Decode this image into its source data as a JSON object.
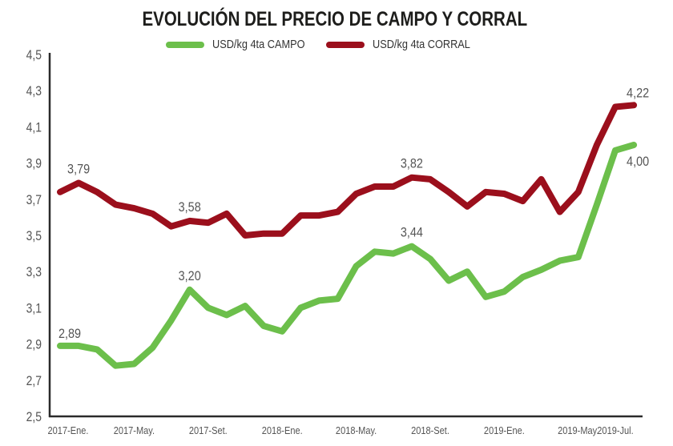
{
  "chart_data": {
    "type": "line",
    "title": "EVOLUCIÓN DEL PRECIO DE CAMPO Y CORRAL",
    "xlabel": "",
    "ylabel": "",
    "ylim": [
      2.5,
      4.5
    ],
    "y_ticks": [
      "4,5",
      "4,3",
      "4,1",
      "3,9",
      "3,7",
      "3,5",
      "3,3",
      "3,1",
      "2,9",
      "2,7",
      "2,5"
    ],
    "y_tick_values": [
      4.5,
      4.3,
      4.1,
      3.9,
      3.7,
      3.5,
      3.3,
      3.1,
      2.9,
      2.7,
      2.5
    ],
    "x_ticks": [
      {
        "index": 0,
        "label": "2017-Ene."
      },
      {
        "index": 4,
        "label": "2017-May."
      },
      {
        "index": 8,
        "label": "2017-Set."
      },
      {
        "index": 12,
        "label": "2018-Ene."
      },
      {
        "index": 16,
        "label": "2018-May."
      },
      {
        "index": 20,
        "label": "2018-Set."
      },
      {
        "index": 24,
        "label": "2019-Ene."
      },
      {
        "index": 28,
        "label": "2019-May."
      },
      {
        "index": 30,
        "label": "2019-Jul."
      }
    ],
    "grid": false,
    "legend_position": "top-center",
    "series": [
      {
        "name": "USD/kg 4ta CAMPO",
        "color": "#6cbf4b",
        "values": [
          2.89,
          2.89,
          2.87,
          2.78,
          2.79,
          2.88,
          3.03,
          3.2,
          3.1,
          3.06,
          3.11,
          3.0,
          2.97,
          3.1,
          3.14,
          3.15,
          3.33,
          3.41,
          3.4,
          3.44,
          3.37,
          3.25,
          3.3,
          3.16,
          3.19,
          3.27,
          3.31,
          3.36,
          3.38,
          3.67,
          3.97,
          4.0
        ],
        "labels": [
          {
            "index": 0,
            "text": "2,89"
          },
          {
            "index": 7,
            "text": "3,20"
          },
          {
            "index": 19,
            "text": "3,44"
          },
          {
            "index": 31,
            "text": "4,00"
          }
        ]
      },
      {
        "name": "USD/kg 4ta CORRAL",
        "color": "#9b0f1c",
        "values": [
          3.74,
          3.79,
          3.74,
          3.67,
          3.65,
          3.62,
          3.55,
          3.58,
          3.57,
          3.62,
          3.5,
          3.51,
          3.51,
          3.61,
          3.61,
          3.63,
          3.73,
          3.77,
          3.77,
          3.82,
          3.81,
          3.74,
          3.66,
          3.74,
          3.73,
          3.69,
          3.81,
          3.63,
          3.74,
          4.0,
          4.21,
          4.22
        ],
        "labels": [
          {
            "index": 1,
            "text": "3,79"
          },
          {
            "index": 7,
            "text": "3,58"
          },
          {
            "index": 19,
            "text": "3,82"
          },
          {
            "index": 31,
            "text": "4,22"
          }
        ]
      }
    ]
  }
}
